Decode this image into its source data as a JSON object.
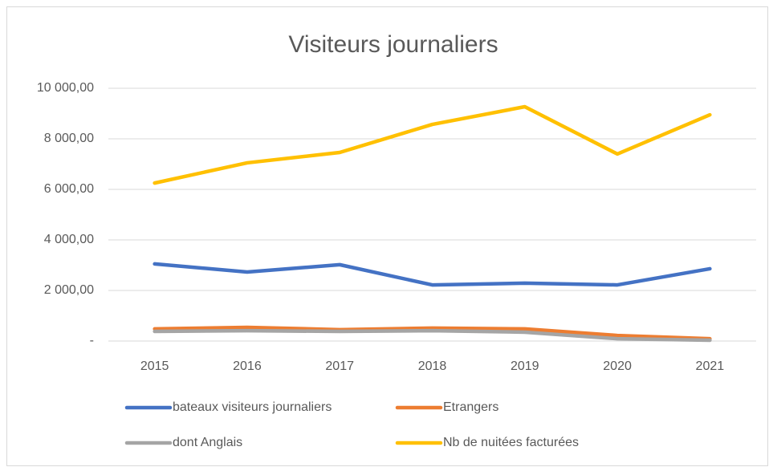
{
  "chart_data": {
    "type": "line",
    "title": "Visiteurs journaliers",
    "categories": [
      "2015",
      "2016",
      "2017",
      "2018",
      "2019",
      "2020",
      "2021"
    ],
    "series": [
      {
        "name": "bateaux visiteurs journaliers",
        "color": "#4472c4",
        "values": [
          3050,
          2730,
          3020,
          2220,
          2290,
          2220,
          2860
        ]
      },
      {
        "name": "Etrangers",
        "color": "#ed7d31",
        "values": [
          480,
          540,
          450,
          510,
          480,
          220,
          90
        ]
      },
      {
        "name": "dont Anglais",
        "color": "#a5a5a5",
        "values": [
          380,
          410,
          380,
          410,
          350,
          90,
          30
        ]
      },
      {
        "name": "Nb de nuitées facturées",
        "color": "#ffc000",
        "values": [
          6250,
          7050,
          7460,
          8570,
          9270,
          7400,
          8950
        ]
      }
    ],
    "ylim": [
      0,
      10000
    ],
    "yticks": [
      {
        "value": 0,
        "label": "-"
      },
      {
        "value": 2000,
        "label": "2 000,00"
      },
      {
        "value": 4000,
        "label": "4 000,00"
      },
      {
        "value": 6000,
        "label": "6 000,00"
      },
      {
        "value": 8000,
        "label": "8 000,00"
      },
      {
        "value": 10000,
        "label": "10 000,00"
      }
    ],
    "grid": true,
    "legend": "bottom"
  }
}
